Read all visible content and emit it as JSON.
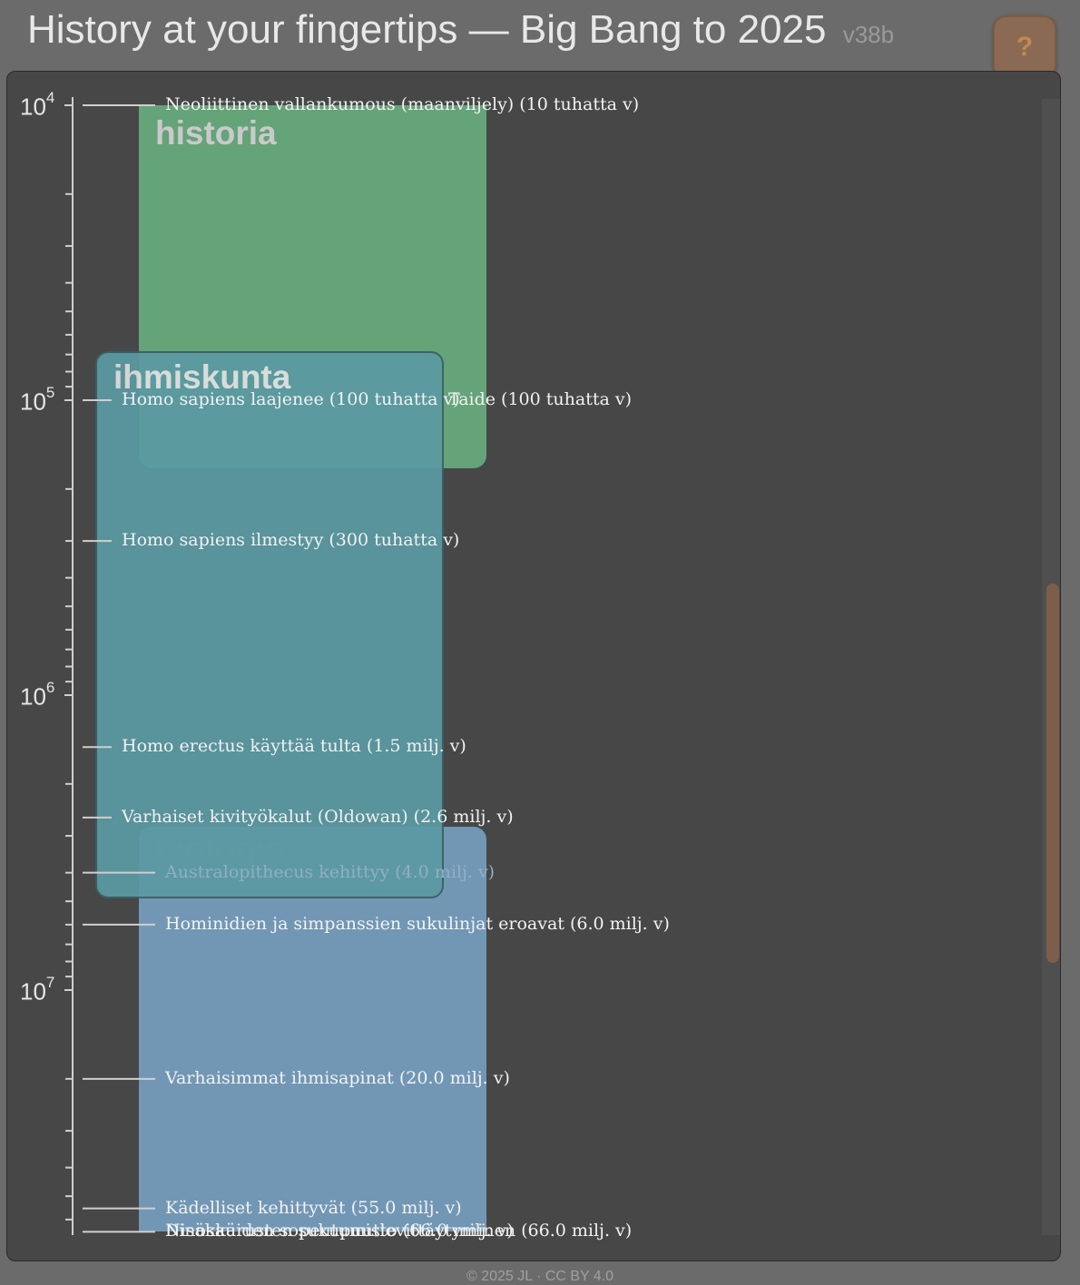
{
  "header": {
    "title": "History at your fingertips — Big Bang to 2025",
    "version": "v38b"
  },
  "help_button": {
    "label": "?"
  },
  "axis": {
    "scale": "log",
    "ticks": [
      {
        "value": 10000,
        "base": "10",
        "exp": "4"
      },
      {
        "value": 100000,
        "base": "10",
        "exp": "5"
      },
      {
        "value": 1000000,
        "base": "10",
        "exp": "6"
      },
      {
        "value": 10000000,
        "base": "10",
        "exp": "7"
      }
    ]
  },
  "bands": [
    {
      "id": "biologia",
      "label": "biologia",
      "color": "#7aa6c9",
      "from": 3000000,
      "to": 66000000
    },
    {
      "id": "historia",
      "label": "historia",
      "color": "#6bb482",
      "from": 10000,
      "to": 170000
    },
    {
      "id": "ihmiskunta",
      "label": "ihmiskunta",
      "color": "#5b9aa3",
      "from": 80000,
      "to": 4900000
    }
  ],
  "events": [
    {
      "text": "Neoliittinen vallankumous (maanviljely) (10 tuhatta v)",
      "years": 10000
    },
    {
      "text": "Homo sapiens laajenee (100 tuhatta v)",
      "years": 100000
    },
    {
      "text": "Taide (100 tuhatta v)",
      "years": 100000
    },
    {
      "text": "Homo sapiens ilmestyy (300 tuhatta v)",
      "years": 300000
    },
    {
      "text": "Homo erectus käyttää tulta (1.5 milj. v)",
      "years": 1500000
    },
    {
      "text": "Varhaiset kivityökalut (Oldowan) (2.6 milj. v)",
      "years": 2600000
    },
    {
      "text": "Australopithecus kehittyy (4.0 milj. v)",
      "years": 4000000
    },
    {
      "text": "Hominidien ja simpanssien sukulinjat eroavat (6.0 milj. v)",
      "years": 6000000
    },
    {
      "text": "Varhaisimmat ihmisapinat (20.0 milj. v)",
      "years": 20000000
    },
    {
      "text": "Kädelliset kehittyvät (55.0 milj. v)",
      "years": 55000000
    },
    {
      "text": "Nisäkkäiden sopeutumislevittäytyminen (66.0 milj. v)",
      "years": 66000000
    },
    {
      "text": "Dinosaurusten sukupuutto (66.0 milj. v)",
      "years": 66000000
    }
  ],
  "footer": {
    "text": "© 2025 JL · CC BY 4.0"
  }
}
